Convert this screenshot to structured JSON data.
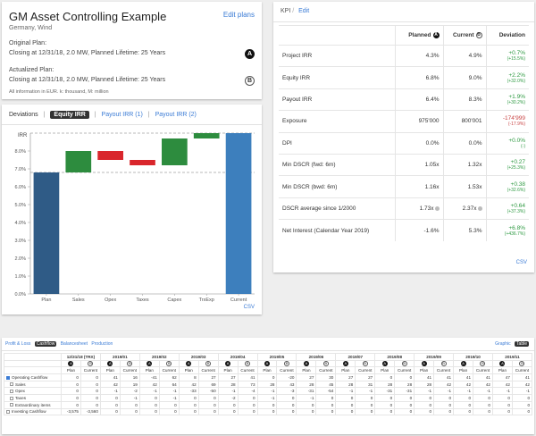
{
  "asset": {
    "title": "GM Asset Controlling Example",
    "edit_label": "Edit plans",
    "subtitle": "Germany, Wind",
    "original_label": "Original Plan:",
    "original_text": "Closing at 12/31/18, 2.0 MW, Planned Lifetime: 25 Years",
    "actualized_label": "Actualized Plan:",
    "actualized_text": "Closing at 12/31/18, 2.0 MW, Planned Lifetime: 25 Years",
    "note": "All information in EUR. k: thousand, M: million",
    "badge_a": "A",
    "badge_b": "B"
  },
  "deviations": {
    "label": "Deviations",
    "tabs": [
      "Equity IRR",
      "Payout IRR (1)",
      "Payout IRR (2)"
    ],
    "csv_label": "CSV"
  },
  "chart_data": {
    "type": "bar",
    "subtype": "waterfall",
    "ylabel": "IRR",
    "ylim": [
      0,
      9
    ],
    "yticks": [
      "0.0%",
      "1.0%",
      "2.0%",
      "3.0%",
      "4.0%",
      "5.0%",
      "6.0%",
      "7.0%",
      "8.0%"
    ],
    "categories": [
      "Plan",
      "Sales",
      "Opex",
      "Taxes",
      "Capex",
      "TrxExp",
      "Current"
    ],
    "bars": [
      {
        "category": "Plan",
        "start": 0,
        "end": 6.8,
        "kind": "total",
        "color": "#2f5b86"
      },
      {
        "category": "Sales",
        "start": 6.8,
        "end": 8.0,
        "kind": "increase",
        "color": "#2d8c3e"
      },
      {
        "category": "Opex",
        "start": 8.0,
        "end": 7.5,
        "kind": "decrease",
        "color": "#d9262c"
      },
      {
        "category": "Taxes",
        "start": 7.5,
        "end": 7.2,
        "kind": "decrease",
        "color": "#d9262c"
      },
      {
        "category": "Capex",
        "start": 7.2,
        "end": 8.7,
        "kind": "increase",
        "color": "#2d8c3e"
      },
      {
        "category": "TrxExp",
        "start": 8.7,
        "end": 9.0,
        "kind": "increase",
        "color": "#2d8c3e"
      },
      {
        "category": "Current",
        "start": 0,
        "end": 9.0,
        "kind": "total",
        "color": "#3d7fbd"
      }
    ],
    "reference_lines": [
      6.8,
      9.0
    ]
  },
  "kpi": {
    "title": "KPI",
    "edit_label": "Edit",
    "columns": [
      "Planned",
      "Current",
      "Deviation"
    ],
    "rows": [
      {
        "label": "Project IRR",
        "planned": "4.3%",
        "current": "4.9%",
        "dev": "+0.7%",
        "pct": "(+15.5%)",
        "sign": "pos"
      },
      {
        "label": "Equity IRR",
        "planned": "6.8%",
        "current": "9.0%",
        "dev": "+2.2%",
        "pct": "(+32.0%)",
        "sign": "pos"
      },
      {
        "label": "Payout IRR",
        "planned": "6.4%",
        "current": "8.3%",
        "dev": "+1.9%",
        "pct": "(+30.2%)",
        "sign": "pos"
      },
      {
        "label": "Exposure",
        "planned": "975'000",
        "current": "800'001",
        "dev": "-174'999",
        "pct": "(-17.9%)",
        "sign": "neg"
      },
      {
        "label": "DPI",
        "planned": "0.0%",
        "current": "0.0%",
        "dev": "+0.0%",
        "pct": "(-)",
        "sign": "pos"
      },
      {
        "label": "Min DSCR (fwd: 6m)",
        "planned": "1.05x",
        "current": "1.32x",
        "dev": "+0.27",
        "pct": "(+25.3%)",
        "sign": "pos"
      },
      {
        "label": "Min DSCR (bwd: 6m)",
        "planned": "1.16x",
        "current": "1.53x",
        "dev": "+0.38",
        "pct": "(+32.6%)",
        "sign": "pos"
      },
      {
        "label": "DSCR average since 1/2000",
        "planned": "1.73x",
        "current": "2.37x",
        "dev": "+0.64",
        "pct": "(+37.3%)",
        "sign": "pos"
      },
      {
        "label": "Net Interest (Calendar Year 2019)",
        "planned": "-1.6%",
        "current": "5.3%",
        "dev": "+6.8%",
        "pct": "(+436.7%)",
        "sign": "pos"
      }
    ],
    "csv_label": "CSV"
  },
  "cashflow": {
    "tabs": [
      "Profit & Loss",
      "Cashflow",
      "Balancesheet",
      "Production"
    ],
    "active_tab": "Cashflow",
    "view_tabs": [
      "Graphic",
      "Table"
    ],
    "active_view": "Table",
    "periods": [
      "12/31/18 (TRX)",
      "2019/01",
      "2019/02",
      "2019/03",
      "2019/04",
      "2019/05",
      "2019/06",
      "2019/07",
      "2019/08",
      "2019/09",
      "2019/10",
      "2019/11"
    ],
    "sub_labels": [
      "Plan",
      "Current"
    ],
    "rows": [
      {
        "label": "Operating Cashflow",
        "toggle": "open",
        "values": [
          "0",
          "0",
          "41",
          "16",
          "-41",
          "62",
          "8",
          "27",
          "27",
          "41",
          "0",
          "-20",
          "27",
          "30",
          "27",
          "27",
          "0",
          "0",
          "41",
          "41",
          "41",
          "41",
          "47",
          "41"
        ]
      },
      {
        "label": "Sales",
        "toggle": "child",
        "values": [
          "0",
          "0",
          "42",
          "19",
          "42",
          "64",
          "42",
          "69",
          "28",
          "73",
          "28",
          "43",
          "28",
          "45",
          "28",
          "31",
          "28",
          "28",
          "28",
          "42",
          "42",
          "42",
          "42",
          "42"
        ]
      },
      {
        "label": "Opex",
        "toggle": "child",
        "values": [
          "0",
          "0",
          "-1",
          "-2",
          "-1",
          "-1",
          "-33",
          "-50",
          "-1",
          "-4",
          "-1",
          "-3",
          "-31",
          "-54",
          "-1",
          "-1",
          "-31",
          "-31",
          "-1",
          "-1",
          "-1",
          "-1",
          "-1",
          "-1"
        ]
      },
      {
        "label": "Taxes",
        "toggle": "child",
        "values": [
          "0",
          "0",
          "0",
          "-1",
          "0",
          "-1",
          "0",
          "0",
          "-2",
          "0",
          "-1",
          "0",
          "-1",
          "0",
          "0",
          "0",
          "0",
          "0",
          "0",
          "0",
          "0",
          "0",
          "0",
          "0"
        ]
      },
      {
        "label": "Extraordinary items",
        "toggle": "child",
        "values": [
          "0",
          "0",
          "0",
          "0",
          "0",
          "0",
          "0",
          "0",
          "0",
          "0",
          "0",
          "0",
          "0",
          "0",
          "0",
          "0",
          "0",
          "0",
          "0",
          "0",
          "0",
          "0",
          "0",
          "0"
        ]
      },
      {
        "label": "Investing Cashflow",
        "toggle": "closed",
        "values": [
          "-3,575",
          "-3,560",
          "0",
          "0",
          "0",
          "0",
          "0",
          "0",
          "0",
          "0",
          "0",
          "0",
          "0",
          "0",
          "0",
          "0",
          "0",
          "0",
          "0",
          "0",
          "0",
          "0",
          "0",
          "0"
        ]
      }
    ]
  }
}
